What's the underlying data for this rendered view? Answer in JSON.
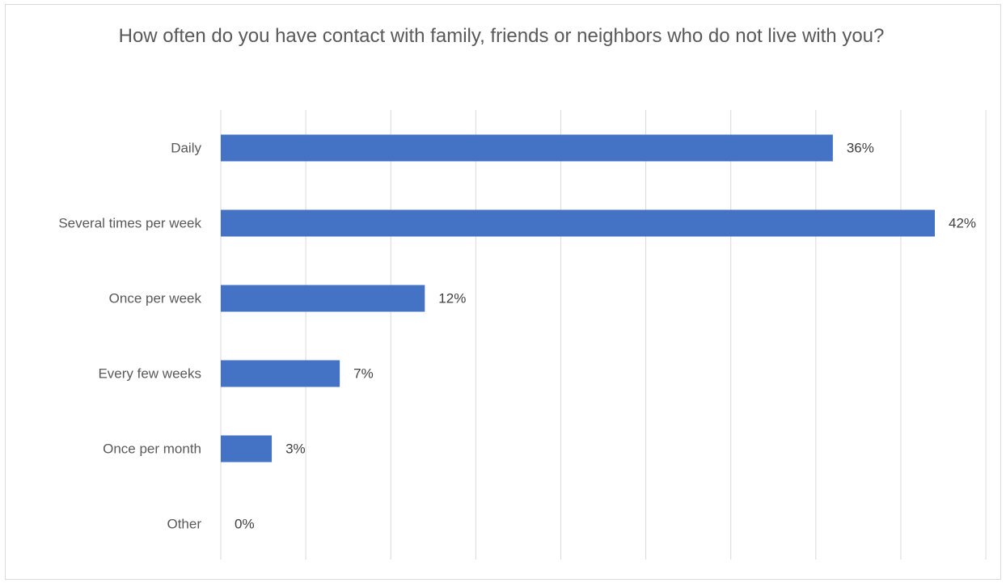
{
  "chart_data": {
    "type": "bar",
    "orientation": "horizontal",
    "title": "How often do you have contact with family, friends or neighbors who do not live with you?",
    "categories": [
      "Daily",
      "Several times per week",
      "Once per week",
      "Every few weeks",
      "Once per month",
      "Other"
    ],
    "values": [
      36,
      42,
      12,
      7,
      3,
      0
    ],
    "value_labels": [
      "36%",
      "42%",
      "12%",
      "7%",
      "3%",
      "0%"
    ],
    "value_unit": "%",
    "xlim": [
      0,
      45
    ],
    "gridlines": true,
    "gridline_step": 5,
    "bar_color": "#4472c4",
    "legend": "none"
  }
}
